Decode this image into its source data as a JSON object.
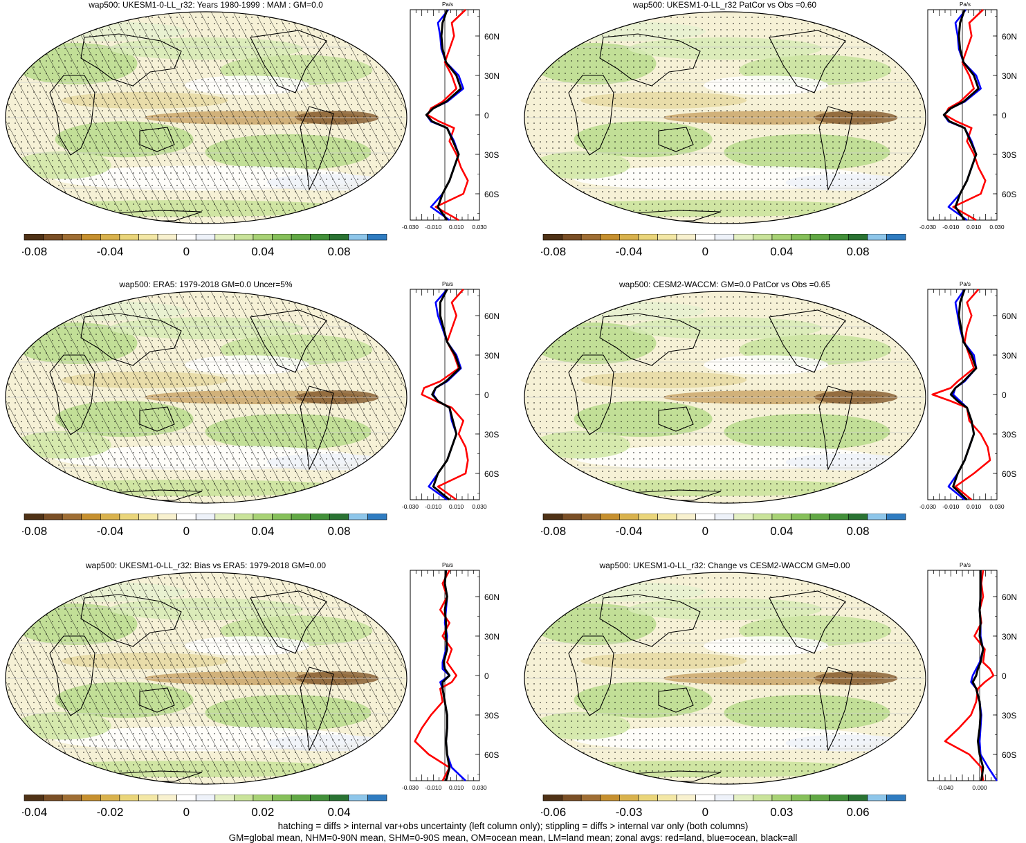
{
  "colorbar_colors": [
    "#4f3216",
    "#7a4f26",
    "#9f6e34",
    "#c6902f",
    "#d9b24d",
    "#ead57a",
    "#f3e7a6",
    "#f8f1cf",
    "#ffffff",
    "#eef2f9",
    "#e4f0c4",
    "#c9e39a",
    "#a8d275",
    "#86c05a",
    "#62a845",
    "#42903a",
    "#2a7333",
    "#8ec6ea",
    "#2f7cc1"
  ],
  "line_colors": {
    "land": "#ff0000",
    "ocean": "#0000ff",
    "all": "#000000"
  },
  "footer": {
    "line1": "hatching = diffs > internal var+obs uncertainty (left column only); stippling = diffs > internal var only (both columns)",
    "line2": "GM=global mean, NHM=0-90N mean, SHM=0-90S mean, OM=ocean mean, LM=land mean; zonal avgs: red=land, blue=ocean, black=all"
  },
  "panels": [
    {
      "title": "wap500: UKESM1-0-LL_r32: Years 1980-1999 : MAM : GM=0.0",
      "cbar_labels": [
        "-0.08",
        "-0.04",
        "0",
        "0.04",
        "0.08"
      ],
      "zonal_unit": "Pa/s",
      "zonal_xticks": [
        "-0.030",
        "-0.010",
        "0.010",
        "0.030"
      ],
      "lat_labels": [
        "60N",
        "30N",
        "0",
        "30S",
        "60S"
      ]
    },
    {
      "title": "wap500: UKESM1-0-LL_r32 PatCor vs Obs =0.60",
      "cbar_labels": [
        "-0.08",
        "-0.04",
        "0",
        "0.04",
        "0.08"
      ],
      "zonal_unit": "Pa/s",
      "zonal_xticks": [
        "-0.030",
        "-0.010",
        "0.010",
        "0.030"
      ],
      "lat_labels": [
        "60N",
        "30N",
        "0",
        "30S",
        "60S"
      ]
    },
    {
      "title": "wap500: ERA5: 1979-2018 GM=0.0 Uncer=5%",
      "cbar_labels": [
        "-0.08",
        "-0.04",
        "0",
        "0.04",
        "0.08"
      ],
      "zonal_unit": "Pa/s",
      "zonal_xticks": [
        "-0.030",
        "-0.010",
        "0.010",
        "0.030"
      ],
      "lat_labels": [
        "60N",
        "30N",
        "0",
        "30S",
        "60S"
      ]
    },
    {
      "title": "wap500: CESM2-WACCM: GM=0.0 PatCor vs Obs =0.65",
      "cbar_labels": [
        "-0.08",
        "-0.04",
        "0",
        "0.04",
        "0.08"
      ],
      "zonal_unit": "Pa/s",
      "zonal_xticks": [
        "-0.030",
        "-0.010",
        "0.010",
        "0.030"
      ],
      "lat_labels": [
        "60N",
        "30N",
        "0",
        "30S",
        "60S"
      ]
    },
    {
      "title": "wap500: UKESM1-0-LL_r32: Bias vs ERA5: 1979-2018 GM=0.00",
      "cbar_labels": [
        "-0.04",
        "-0.02",
        "0",
        "0.02",
        "0.04"
      ],
      "zonal_unit": "Pa/s",
      "zonal_xticks": [
        "-0.030",
        "-0.010",
        "0.010",
        "0.030"
      ],
      "lat_labels": [
        "60N",
        "30N",
        "0",
        "30S",
        "60S"
      ]
    },
    {
      "title": "wap500: UKESM1-0-LL_r32: Change vs CESM2-WACCM GM=0.00",
      "cbar_labels": [
        "-0.06",
        "-0.03",
        "0",
        "0.03",
        "0.06"
      ],
      "zonal_unit": "Pa/s",
      "zonal_xticks": [
        "-0.040",
        "0.000"
      ],
      "lat_labels": [
        "60N",
        "30N",
        "0",
        "30S",
        "60S"
      ]
    }
  ],
  "chart_data": [
    {
      "type": "heatmap",
      "title": "wap500: UKESM1-0-LL_r32: Years 1980-1999 : MAM : GM=0.0",
      "colorbar_ticks": [
        -0.08,
        -0.04,
        0,
        0.04,
        0.08
      ],
      "colorbar_range": [
        -0.1,
        0.1
      ],
      "hatching": true,
      "stippling": true,
      "zonal": {
        "type": "line",
        "unit": "Pa/s",
        "xlim": [
          -0.03,
          0.03
        ],
        "lat_ticks": [
          "60N",
          "30N",
          "0",
          "30S",
          "60S"
        ],
        "lat": [
          80,
          70,
          60,
          50,
          40,
          30,
          20,
          10,
          5,
          0,
          -5,
          -10,
          -20,
          -30,
          -40,
          -50,
          -60,
          -70,
          -80
        ],
        "series": [
          {
            "name": "land",
            "values": [
              0.018,
              0.006,
              0.008,
              0.004,
              0.0,
              0.006,
              0.01,
              -0.002,
              -0.012,
              -0.015,
              -0.005,
              0.008,
              0.004,
              0.01,
              0.014,
              0.02,
              0.016,
              -0.008,
              0.012
            ]
          },
          {
            "name": "ocean",
            "values": [
              0.003,
              -0.006,
              -0.004,
              -0.003,
              0.001,
              0.012,
              0.016,
              0.002,
              -0.01,
              -0.016,
              -0.012,
              0.002,
              0.008,
              0.012,
              0.008,
              0.004,
              -0.002,
              -0.012,
              0.004
            ]
          },
          {
            "name": "all",
            "values": [
              0.002,
              -0.002,
              -0.003,
              -0.002,
              0.001,
              0.01,
              0.014,
              0.001,
              -0.01,
              -0.016,
              -0.011,
              0.002,
              0.007,
              0.012,
              0.008,
              0.004,
              -0.002,
              -0.006,
              0.002
            ]
          }
        ]
      }
    },
    {
      "type": "heatmap",
      "title": "wap500: UKESM1-0-LL_r32 PatCor vs Obs =0.60",
      "colorbar_ticks": [
        -0.08,
        -0.04,
        0,
        0.04,
        0.08
      ],
      "colorbar_range": [
        -0.1,
        0.1
      ],
      "hatching": false,
      "stippling": true,
      "zonal": {
        "type": "line",
        "unit": "Pa/s",
        "xlim": [
          -0.03,
          0.03
        ],
        "lat_ticks": [
          "60N",
          "30N",
          "0",
          "30S",
          "60S"
        ],
        "lat": [
          80,
          70,
          60,
          50,
          40,
          30,
          20,
          10,
          5,
          0,
          -5,
          -10,
          -20,
          -30,
          -40,
          -50,
          -60,
          -70,
          -80
        ],
        "series": [
          {
            "name": "land",
            "values": [
              0.018,
              0.006,
              0.008,
              0.004,
              0.0,
              0.006,
              0.01,
              -0.002,
              -0.012,
              -0.015,
              -0.005,
              0.008,
              0.004,
              0.01,
              0.014,
              0.02,
              0.016,
              -0.008,
              0.012
            ]
          },
          {
            "name": "ocean",
            "values": [
              0.003,
              -0.006,
              -0.004,
              -0.003,
              0.001,
              0.012,
              0.016,
              0.002,
              -0.01,
              -0.016,
              -0.012,
              0.002,
              0.008,
              0.012,
              0.008,
              0.004,
              -0.002,
              -0.012,
              0.004
            ]
          },
          {
            "name": "all",
            "values": [
              0.002,
              -0.002,
              -0.003,
              -0.002,
              0.001,
              0.01,
              0.014,
              0.001,
              -0.01,
              -0.016,
              -0.011,
              0.002,
              0.007,
              0.012,
              0.008,
              0.004,
              -0.002,
              -0.006,
              0.002
            ]
          }
        ]
      }
    },
    {
      "type": "heatmap",
      "title": "wap500: ERA5: 1979-2018 GM=0.0 Uncer=5%",
      "colorbar_ticks": [
        -0.08,
        -0.04,
        0,
        0.04,
        0.08
      ],
      "colorbar_range": [
        -0.1,
        0.1
      ],
      "hatching": true,
      "stippling": true,
      "zonal": {
        "type": "line",
        "unit": "Pa/s",
        "xlim": [
          -0.03,
          0.03
        ],
        "lat_ticks": [
          "60N",
          "30N",
          "0",
          "30S",
          "60S"
        ],
        "lat": [
          80,
          70,
          60,
          50,
          40,
          30,
          20,
          10,
          5,
          0,
          -5,
          -10,
          -20,
          -30,
          -40,
          -50,
          -60,
          -70,
          -80
        ],
        "series": [
          {
            "name": "land",
            "values": [
              0.016,
              0.006,
              0.01,
              0.006,
              0.002,
              0.008,
              0.012,
              -0.004,
              -0.018,
              -0.02,
              -0.008,
              0.006,
              0.016,
              0.012,
              0.018,
              0.02,
              0.018,
              -0.006,
              0.01
            ]
          },
          {
            "name": "ocean",
            "values": [
              0.002,
              -0.008,
              -0.006,
              -0.002,
              0.002,
              0.01,
              0.014,
              0.002,
              -0.008,
              -0.01,
              -0.006,
              0.004,
              0.006,
              0.01,
              0.006,
              0.002,
              -0.006,
              -0.014,
              0.002
            ]
          },
          {
            "name": "all",
            "values": [
              0.002,
              -0.004,
              -0.004,
              -0.001,
              0.002,
              0.009,
              0.013,
              0.001,
              -0.008,
              -0.011,
              -0.006,
              0.004,
              0.007,
              0.01,
              0.006,
              0.002,
              -0.006,
              -0.01,
              0.004
            ]
          }
        ]
      }
    },
    {
      "type": "heatmap",
      "title": "wap500: CESM2-WACCM: GM=0.0 PatCor vs Obs =0.65",
      "colorbar_ticks": [
        -0.08,
        -0.04,
        0,
        0.04,
        0.08
      ],
      "colorbar_range": [
        -0.1,
        0.1
      ],
      "hatching": false,
      "stippling": true,
      "zonal": {
        "type": "line",
        "unit": "Pa/s",
        "xlim": [
          -0.03,
          0.03
        ],
        "lat_ticks": [
          "60N",
          "30N",
          "0",
          "30S",
          "60S"
        ],
        "lat": [
          80,
          70,
          60,
          50,
          40,
          30,
          20,
          10,
          5,
          0,
          -5,
          -10,
          -20,
          -30,
          -40,
          -50,
          -60,
          -70,
          -80
        ],
        "series": [
          {
            "name": "land",
            "values": [
              0.014,
              0.004,
              0.008,
              0.004,
              0.002,
              0.006,
              0.01,
              -0.004,
              -0.01,
              -0.026,
              -0.01,
              0.004,
              0.006,
              0.016,
              0.022,
              0.024,
              0.01,
              -0.006,
              0.008
            ]
          },
          {
            "name": "ocean",
            "values": [
              0.002,
              -0.006,
              -0.004,
              -0.002,
              0.001,
              0.01,
              0.012,
              0.002,
              -0.006,
              -0.008,
              -0.002,
              0.004,
              0.008,
              0.01,
              0.006,
              0.002,
              -0.004,
              -0.012,
              0.002
            ]
          },
          {
            "name": "all",
            "values": [
              0.002,
              -0.002,
              -0.003,
              -0.001,
              0.001,
              0.008,
              0.012,
              0.001,
              -0.006,
              -0.01,
              -0.004,
              0.004,
              0.008,
              0.01,
              0.006,
              0.002,
              -0.004,
              -0.008,
              0.004
            ]
          }
        ]
      }
    },
    {
      "type": "heatmap",
      "title": "wap500: UKESM1-0-LL_r32: Bias vs ERA5: 1979-2018 GM=0.00",
      "colorbar_ticks": [
        -0.04,
        -0.02,
        0,
        0.02,
        0.04
      ],
      "colorbar_range": [
        -0.05,
        0.05
      ],
      "hatching": true,
      "stippling": true,
      "zonal": {
        "type": "line",
        "unit": "Pa/s",
        "xlim": [
          -0.03,
          0.03
        ],
        "lat_ticks": [
          "60N",
          "30N",
          "0",
          "30S",
          "60S"
        ],
        "lat": [
          80,
          70,
          60,
          50,
          40,
          30,
          20,
          10,
          5,
          0,
          -5,
          -10,
          -20,
          -30,
          -40,
          -50,
          -60,
          -70,
          -80
        ],
        "series": [
          {
            "name": "land",
            "values": [
              0.004,
              -0.002,
              0.002,
              -0.004,
              0.004,
              -0.002,
              0.006,
              0.002,
              0.006,
              0.01,
              0.006,
              -0.004,
              -0.002,
              -0.012,
              -0.02,
              -0.026,
              -0.014,
              0.004,
              -0.002
            ]
          },
          {
            "name": "ocean",
            "values": [
              0.001,
              0.0,
              0.002,
              0.001,
              0.0,
              0.002,
              0.001,
              -0.002,
              -0.002,
              0.004,
              -0.004,
              -0.002,
              0.0,
              0.002,
              0.002,
              0.001,
              0.002,
              0.006,
              0.018
            ]
          },
          {
            "name": "all",
            "values": [
              0.001,
              0.0,
              0.002,
              0.0,
              0.001,
              0.001,
              0.002,
              -0.001,
              0.0,
              0.004,
              -0.002,
              -0.002,
              0.0,
              0.002,
              0.002,
              0.001,
              0.002,
              0.004,
              0.001
            ]
          }
        ]
      }
    },
    {
      "type": "heatmap",
      "title": "wap500: UKESM1-0-LL_r32: Change vs CESM2-WACCM GM=0.00",
      "colorbar_ticks": [
        -0.06,
        -0.03,
        0,
        0.03,
        0.06
      ],
      "colorbar_range": [
        -0.075,
        0.075
      ],
      "hatching": false,
      "stippling": true,
      "zonal": {
        "type": "line",
        "unit": "Pa/s",
        "xlim": [
          -0.06,
          0.02
        ],
        "lat_ticks": [
          "60N",
          "30N",
          "0",
          "30S",
          "60S"
        ],
        "lat": [
          80,
          70,
          60,
          50,
          40,
          30,
          20,
          10,
          5,
          0,
          -5,
          -10,
          -20,
          -30,
          -40,
          -50,
          -60,
          -70,
          -80
        ],
        "series": [
          {
            "name": "land",
            "values": [
              0.004,
              0.002,
              0.004,
              0.0,
              0.002,
              -0.006,
              0.006,
              0.004,
              0.012,
              0.016,
              0.006,
              -0.002,
              -0.004,
              -0.01,
              -0.024,
              -0.04,
              -0.012,
              0.002,
              0.004
            ]
          },
          {
            "name": "ocean",
            "values": [
              0.001,
              0.001,
              0.001,
              0.0,
              0.001,
              0.001,
              0.004,
              0.0,
              -0.004,
              -0.008,
              -0.01,
              -0.004,
              0.0,
              0.002,
              0.001,
              0.0,
              0.001,
              0.01,
              0.02
            ]
          },
          {
            "name": "all",
            "values": [
              0.001,
              0.001,
              0.001,
              0.0,
              0.001,
              0.0,
              0.004,
              0.001,
              -0.002,
              -0.004,
              -0.008,
              -0.004,
              0.0,
              0.001,
              0.0,
              -0.002,
              0.0,
              0.004,
              0.002
            ]
          }
        ]
      }
    }
  ]
}
